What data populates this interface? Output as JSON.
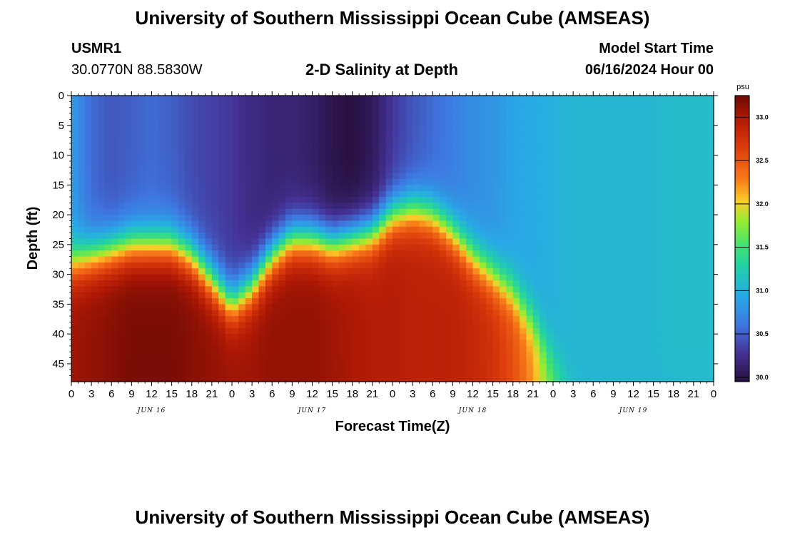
{
  "header": {
    "title": "University of Southern Mississippi Ocean Cube (AMSEAS)",
    "station_id": "USMR1",
    "coordinates": "30.0770N  88.5830W",
    "plot_title": "2-D Salinity at Depth",
    "model_start_label": "Model Start Time",
    "model_start_value": "06/16/2024 Hour 00"
  },
  "footer": {
    "title": "University of Southern Mississippi Ocean Cube (AMSEAS)"
  },
  "chart_data": {
    "type": "heatmap",
    "title": "2-D Salinity at Depth",
    "xlabel": "Forecast Time(Z)",
    "ylabel": "Depth (ft)",
    "x_hours": [
      0,
      3,
      6,
      9,
      12,
      15,
      18,
      21,
      24,
      27,
      30,
      33,
      36,
      39,
      42,
      45,
      48,
      51,
      54,
      57,
      60,
      63,
      66,
      69,
      72,
      75,
      78,
      81,
      84,
      87,
      90,
      93,
      96
    ],
    "x_tick_labels": [
      "0",
      "3",
      "6",
      "9",
      "12",
      "15",
      "18",
      "21",
      "0",
      "3",
      "6",
      "9",
      "12",
      "15",
      "18",
      "21",
      "0",
      "3",
      "6",
      "9",
      "12",
      "15",
      "18",
      "21",
      "0",
      "3",
      "6",
      "9",
      "12",
      "15",
      "18",
      "21",
      "0"
    ],
    "day_labels": [
      {
        "label": "JUN 16",
        "hour": 12
      },
      {
        "label": "JUN 17",
        "hour": 36
      },
      {
        "label": "JUN 18",
        "hour": 60
      },
      {
        "label": "JUN 19",
        "hour": 84
      }
    ],
    "y_ticks": [
      0,
      5,
      10,
      15,
      20,
      25,
      30,
      35,
      40,
      45
    ],
    "x_range": [
      0,
      96
    ],
    "y_range": [
      0,
      48
    ],
    "colorbar": {
      "unit": "psu",
      "ticks": [
        "33.0",
        "32.5",
        "32.0",
        "31.5",
        "31.0",
        "30.5",
        "30.0"
      ],
      "range": [
        29.95,
        33.25
      ]
    },
    "surface_salinity": [
      {
        "hour": 0,
        "psu": 30.85
      },
      {
        "hour": 3,
        "psu": 30.55
      },
      {
        "hour": 6,
        "psu": 30.45
      },
      {
        "hour": 9,
        "psu": 30.5
      },
      {
        "hour": 12,
        "psu": 30.55
      },
      {
        "hour": 15,
        "psu": 30.5
      },
      {
        "hour": 18,
        "psu": 30.4
      },
      {
        "hour": 21,
        "psu": 30.35
      },
      {
        "hour": 24,
        "psu": 30.3
      },
      {
        "hour": 27,
        "psu": 30.2
      },
      {
        "hour": 30,
        "psu": 30.15
      },
      {
        "hour": 33,
        "psu": 30.15
      },
      {
        "hour": 36,
        "psu": 30.1
      },
      {
        "hour": 39,
        "psu": 30.0
      },
      {
        "hour": 42,
        "psu": 29.95
      },
      {
        "hour": 45,
        "psu": 30.05
      },
      {
        "hour": 48,
        "psu": 30.3
      },
      {
        "hour": 51,
        "psu": 30.45
      },
      {
        "hour": 54,
        "psu": 30.55
      },
      {
        "hour": 57,
        "psu": 30.65
      },
      {
        "hour": 60,
        "psu": 30.75
      },
      {
        "hour": 63,
        "psu": 30.8
      },
      {
        "hour": 66,
        "psu": 30.9
      },
      {
        "hour": 69,
        "psu": 30.95
      },
      {
        "hour": 72,
        "psu": 31.0
      },
      {
        "hour": 75,
        "psu": 31.05
      },
      {
        "hour": 78,
        "psu": 31.05
      },
      {
        "hour": 81,
        "psu": 31.05
      },
      {
        "hour": 84,
        "psu": 31.05
      },
      {
        "hour": 87,
        "psu": 31.05
      },
      {
        "hour": 90,
        "psu": 31.1
      },
      {
        "hour": 93,
        "psu": 31.1
      },
      {
        "hour": 96,
        "psu": 31.1
      }
    ],
    "bottom_salinity": [
      {
        "hour": 0,
        "psu": 33.05
      },
      {
        "hour": 3,
        "psu": 33.1
      },
      {
        "hour": 6,
        "psu": 33.15
      },
      {
        "hour": 9,
        "psu": 33.2
      },
      {
        "hour": 12,
        "psu": 33.2
      },
      {
        "hour": 15,
        "psu": 33.2
      },
      {
        "hour": 18,
        "psu": 33.15
      },
      {
        "hour": 21,
        "psu": 33.1
      },
      {
        "hour": 24,
        "psu": 33.05
      },
      {
        "hour": 27,
        "psu": 33.05
      },
      {
        "hour": 30,
        "psu": 33.1
      },
      {
        "hour": 33,
        "psu": 33.1
      },
      {
        "hour": 36,
        "psu": 33.1
      },
      {
        "hour": 39,
        "psu": 33.05
      },
      {
        "hour": 42,
        "psu": 33.0
      },
      {
        "hour": 45,
        "psu": 32.95
      },
      {
        "hour": 48,
        "psu": 32.95
      },
      {
        "hour": 51,
        "psu": 32.9
      },
      {
        "hour": 54,
        "psu": 32.9
      },
      {
        "hour": 57,
        "psu": 32.9
      },
      {
        "hour": 60,
        "psu": 32.85
      },
      {
        "hour": 63,
        "psu": 32.75
      },
      {
        "hour": 66,
        "psu": 32.55
      },
      {
        "hour": 69,
        "psu": 32.2
      },
      {
        "hour": 72,
        "psu": 31.6
      },
      {
        "hour": 75,
        "psu": 31.1
      },
      {
        "hour": 78,
        "psu": 31.05
      },
      {
        "hour": 81,
        "psu": 31.05
      },
      {
        "hour": 84,
        "psu": 31.05
      },
      {
        "hour": 87,
        "psu": 31.05
      },
      {
        "hour": 90,
        "psu": 31.05
      },
      {
        "hour": 93,
        "psu": 31.05
      },
      {
        "hour": 96,
        "psu": 31.05
      }
    ],
    "halocline_depth_ft": [
      {
        "hour": 0,
        "depth": 28
      },
      {
        "hour": 3,
        "depth": 27
      },
      {
        "hour": 6,
        "depth": 26
      },
      {
        "hour": 9,
        "depth": 25
      },
      {
        "hour": 12,
        "depth": 25
      },
      {
        "hour": 15,
        "depth": 25
      },
      {
        "hour": 18,
        "depth": 27
      },
      {
        "hour": 21,
        "depth": 31
      },
      {
        "hour": 24,
        "depth": 35
      },
      {
        "hour": 27,
        "depth": 32
      },
      {
        "hour": 30,
        "depth": 27
      },
      {
        "hour": 33,
        "depth": 24
      },
      {
        "hour": 36,
        "depth": 24
      },
      {
        "hour": 39,
        "depth": 25
      },
      {
        "hour": 42,
        "depth": 24
      },
      {
        "hour": 45,
        "depth": 23
      },
      {
        "hour": 48,
        "depth": 20
      },
      {
        "hour": 51,
        "depth": 19
      },
      {
        "hour": 54,
        "depth": 20
      },
      {
        "hour": 57,
        "depth": 23
      },
      {
        "hour": 60,
        "depth": 27
      },
      {
        "hour": 63,
        "depth": 30
      },
      {
        "hour": 66,
        "depth": 33
      },
      {
        "hour": 69,
        "depth": 38
      },
      {
        "hour": 72,
        "depth": 44
      },
      {
        "hour": 75,
        "depth": 48
      },
      {
        "hour": 78,
        "depth": 48
      },
      {
        "hour": 81,
        "depth": 48
      },
      {
        "hour": 84,
        "depth": 48
      },
      {
        "hour": 87,
        "depth": 48
      },
      {
        "hour": 90,
        "depth": 48
      },
      {
        "hour": 93,
        "depth": 48
      },
      {
        "hour": 96,
        "depth": 48
      }
    ]
  }
}
